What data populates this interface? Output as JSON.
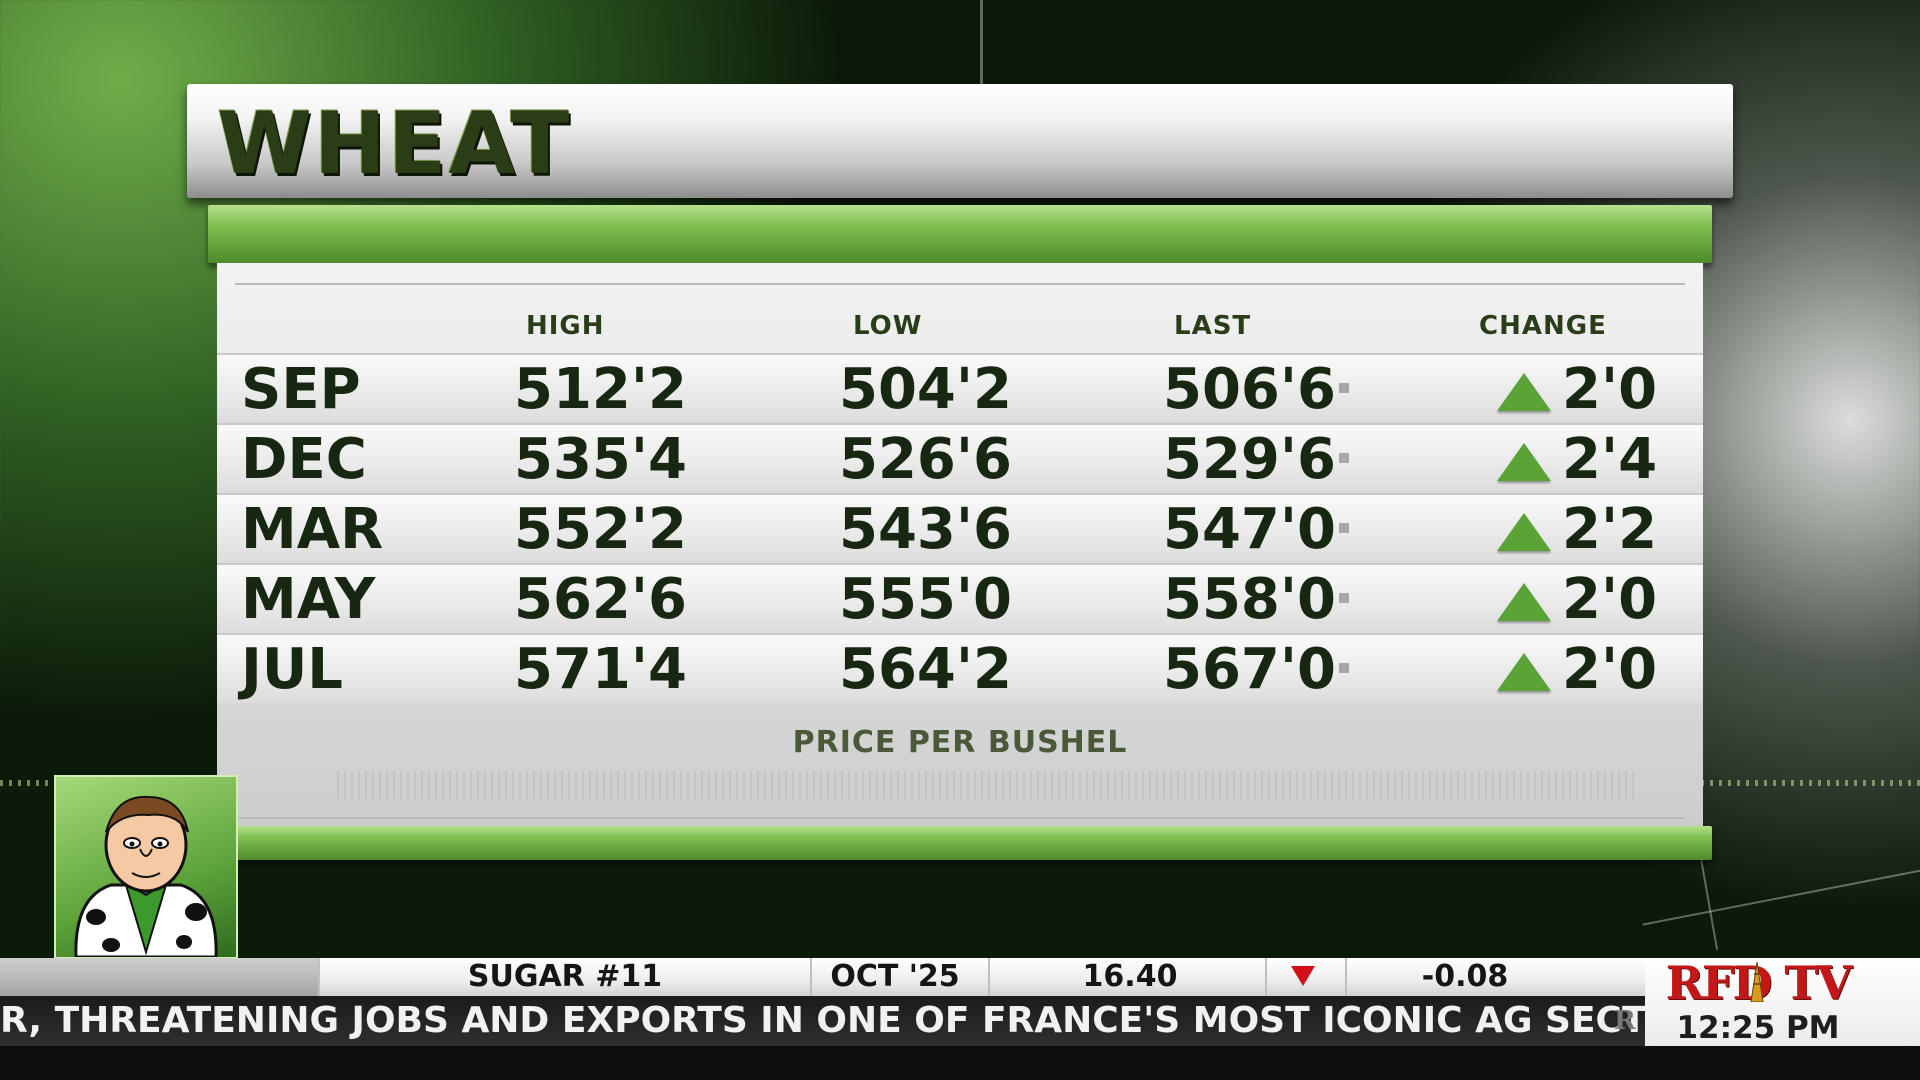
{
  "title": "WHEAT",
  "table": {
    "headers": {
      "high": "HIGH",
      "low": "LOW",
      "last": "LAST",
      "change": "CHANGE"
    },
    "rows": [
      {
        "month": "SEP",
        "high": "512'2",
        "low": "504'2",
        "last": "506'6",
        "change": "2'0",
        "direction": "up"
      },
      {
        "month": "DEC",
        "high": "535'4",
        "low": "526'6",
        "last": "529'6",
        "change": "2'4",
        "direction": "up"
      },
      {
        "month": "MAR",
        "high": "552'2",
        "low": "543'6",
        "last": "547'0",
        "change": "2'2",
        "direction": "up"
      },
      {
        "month": "MAY",
        "high": "562'6",
        "low": "555'0",
        "last": "558'0",
        "change": "2'0",
        "direction": "up"
      },
      {
        "month": "JUL",
        "high": "571'4",
        "low": "564'2",
        "last": "567'0",
        "change": "2'0",
        "direction": "up"
      }
    ],
    "footnote": "PRICE PER BUSHEL"
  },
  "ticker": {
    "commodity": "SUGAR #11",
    "contract": "OCT '25",
    "price": "16.40",
    "direction": "down",
    "change": "-0.08"
  },
  "headline_crawl": "R, THREATENING JOBS AND EXPORTS IN ONE OF FRANCE'S MOST ICONIC AG SECTORS",
  "logo": {
    "text": "RFD TV",
    "time": "12:25 PM MT"
  },
  "colors": {
    "title_green": "#2b3d17",
    "accent_green": "#7fbf4f",
    "up_arrow": "#5aa336",
    "down_arrow": "#d3101a",
    "logo_red": "#c31818"
  },
  "icons": {
    "up": "up-triangle-icon",
    "down": "down-triangle-icon",
    "mascot": "mascot-cartoon-icon"
  }
}
